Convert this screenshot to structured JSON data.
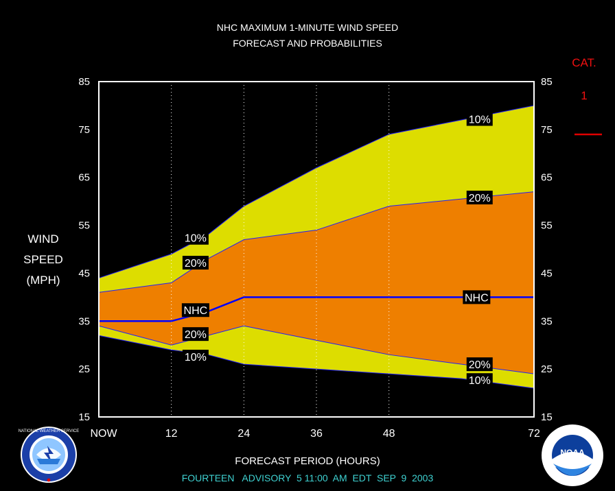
{
  "header": {
    "title": "NHC MAXIMUM 1-MINUTE WIND SPEED",
    "subtitle": "FORECAST AND PROBABILITIES"
  },
  "ylabel_lines": [
    "WIND",
    "SPEED",
    "(MPH)"
  ],
  "xlabel": "FORECAST PERIOD (HOURS)",
  "footer": "FOURTEEN   ADVISORY  5 11:00  AM  EDT  SEP  9  2003",
  "category": {
    "label": "CAT.",
    "value": "1",
    "line_color": "#e00000"
  },
  "colors": {
    "outer_band": "#dddd00",
    "inner_band": "#ee7f00",
    "nhc_line": "#0000ff",
    "band_edge": "#2020ff",
    "grid": "#ffffff",
    "footer": "#3fd2d2",
    "category": "#e00000"
  },
  "logos": {
    "left": {
      "icon": "nws-logo",
      "text": "NATIONAL WEATHER SERVICE"
    },
    "right": {
      "icon": "noaa-logo",
      "text": "NOAA"
    }
  },
  "chart_data": {
    "type": "area",
    "xlim": [
      0,
      72
    ],
    "ylim": [
      15,
      85
    ],
    "x_ticks": [
      0,
      12,
      24,
      36,
      48,
      72
    ],
    "x_tick_labels": [
      "NOW",
      "12",
      "24",
      "36",
      "48",
      "72"
    ],
    "y_ticks": [
      15,
      25,
      35,
      45,
      55,
      65,
      75,
      85
    ],
    "y_tick_labels": [
      "15",
      "25",
      "35",
      "45",
      "55",
      "65",
      "75",
      "85"
    ],
    "x": [
      0,
      12,
      18,
      24,
      36,
      48,
      60,
      72
    ],
    "series": [
      {
        "name": "10%",
        "role": "upper",
        "values": [
          44,
          49,
          53,
          59,
          67,
          74,
          77,
          80
        ]
      },
      {
        "name": "20%",
        "role": "upper",
        "values": [
          41,
          43,
          48,
          52,
          54,
          59,
          60.5,
          62
        ]
      },
      {
        "name": "NHC",
        "role": "forecast",
        "values": [
          35,
          35,
          37,
          40,
          40,
          40,
          40,
          40
        ]
      },
      {
        "name": "20%",
        "role": "lower",
        "values": [
          34,
          30,
          32,
          34,
          31,
          28,
          26,
          24
        ]
      },
      {
        "name": "10%",
        "role": "lower",
        "values": [
          32,
          29,
          28,
          26,
          25,
          24,
          23,
          21
        ]
      }
    ],
    "labels": [
      {
        "text": "10%",
        "x": 16,
        "y": 52.4
      },
      {
        "text": "20%",
        "x": 16,
        "y": 47.2
      },
      {
        "text": "NHC",
        "x": 16,
        "y": 37.3
      },
      {
        "text": "20%",
        "x": 16,
        "y": 32.3
      },
      {
        "text": "10%",
        "x": 16,
        "y": 27.6
      },
      {
        "text": "10%",
        "x": 63,
        "y": 77.2
      },
      {
        "text": "20%",
        "x": 63,
        "y": 60.8
      },
      {
        "text": "NHC",
        "x": 62.5,
        "y": 40.0
      },
      {
        "text": "20%",
        "x": 63,
        "y": 26.0
      },
      {
        "text": "10%",
        "x": 63,
        "y": 22.7
      }
    ],
    "grid": "dotted vertical at 12, 24, 36, 48"
  }
}
